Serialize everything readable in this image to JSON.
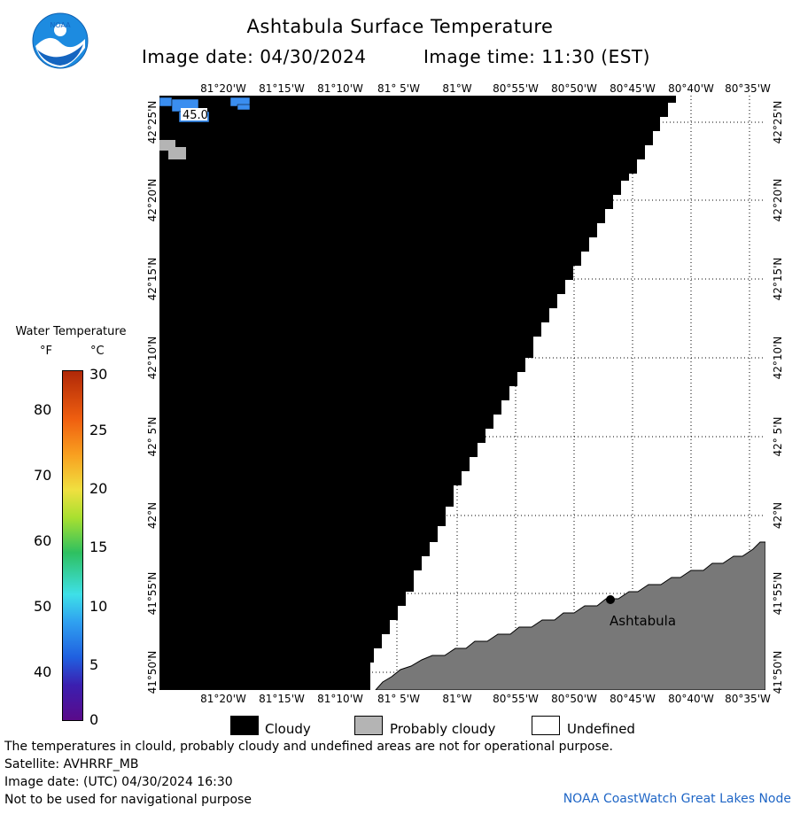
{
  "title": "Ashtabula Surface Temperature",
  "image_date_label": "Image date: 04/30/2024",
  "image_time_label": "Image time: 11:30 (EST)",
  "logo_text": "NOAA",
  "lon_labels": [
    "81°20'W",
    "81°15'W",
    "81°10'W",
    "81° 5'W",
    "81°W",
    "80°55'W",
    "80°50'W",
    "80°45'W",
    "80°40'W",
    "80°35'W"
  ],
  "lat_labels": [
    "42°25'N",
    "42°20'N",
    "42°15'N",
    "42°10'N",
    "42° 5'N",
    "42°N",
    "41°55'N",
    "41°50'N"
  ],
  "map": {
    "temperature_label": "45.0",
    "place_label": "Ashtabula",
    "colors": {
      "cloudy": "#000000",
      "probably_cloudy": "#b4b4b4",
      "land": "#787878",
      "undefined": "#ffffff",
      "water_45F": "#3a8ef0"
    }
  },
  "legend": {
    "title": "Water Temperature",
    "unit_f": "°F",
    "unit_c": "°C",
    "f_ticks": [
      "80",
      "70",
      "60",
      "50",
      "40"
    ],
    "c_ticks": [
      "30",
      "25",
      "20",
      "15",
      "10",
      "5",
      "0"
    ],
    "range_c": [
      0,
      30
    ]
  },
  "key": [
    {
      "label": "Cloudy",
      "color": "#000000"
    },
    {
      "label": "Probably cloudy",
      "color": "#b4b4b4"
    },
    {
      "label": "Undefined",
      "color": "#ffffff"
    }
  ],
  "footer": {
    "disclaimer": "The temperatures in clould, probably cloudy and undefined areas are not for operational purpose.",
    "satellite": "Satellite: AVHRRF_MB",
    "utc_date": "Image date: (UTC) 04/30/2024  16:30",
    "nav_warning": "Not to be used for navigational purpose",
    "credit": "NOAA CoastWatch Great Lakes Node"
  }
}
